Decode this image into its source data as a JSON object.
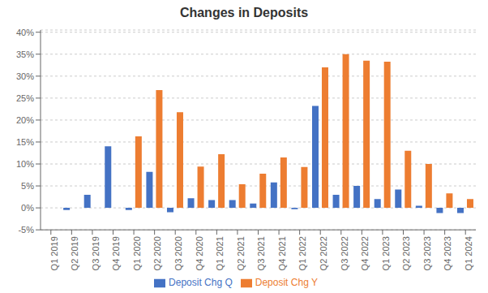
{
  "chart_data": {
    "type": "bar",
    "title": "Changes in Deposits",
    "categories": [
      "Q1 2019",
      "Q2 2019",
      "Q3 2019",
      "Q4 2019",
      "Q1 2020",
      "Q2 2020",
      "Q3 2020",
      "Q4 2020",
      "Q1 2021",
      "Q2 2021",
      "Q3 2021",
      "Q4 2021",
      "Q1 2022",
      "Q2 2022",
      "Q3 2022",
      "Q4 2022",
      "Q1 2023",
      "Q2 2023",
      "Q3 2023",
      "Q4 2023",
      "Q1 2024"
    ],
    "series": [
      {
        "name": "Deposit Chg Q",
        "color": "#4472c4",
        "values": [
          0.0,
          -0.005,
          0.03,
          0.14,
          -0.005,
          0.082,
          -0.01,
          0.022,
          0.018,
          0.018,
          0.01,
          0.058,
          -0.003,
          0.232,
          0.03,
          0.05,
          0.02,
          0.042,
          0.005,
          -0.012,
          -0.012
        ]
      },
      {
        "name": "Deposit Chg Y",
        "color": "#ed7d31",
        "values": [
          0.0,
          0.0,
          0.0,
          0.0,
          0.163,
          0.268,
          0.218,
          0.094,
          0.122,
          0.054,
          0.078,
          0.115,
          0.093,
          0.32,
          0.35,
          0.335,
          0.333,
          0.13,
          0.1,
          0.033,
          0.02
        ]
      }
    ],
    "ylim": [
      -0.05,
      0.405
    ],
    "yticks": [
      {
        "value": -0.05,
        "label": "-5%"
      },
      {
        "value": 0.0,
        "label": "0%"
      },
      {
        "value": 0.05,
        "label": "5%"
      },
      {
        "value": 0.1,
        "label": "10%"
      },
      {
        "value": 0.15,
        "label": "15%"
      },
      {
        "value": 0.2,
        "label": "20%"
      },
      {
        "value": 0.25,
        "label": "25%"
      },
      {
        "value": 0.3,
        "label": "30%"
      },
      {
        "value": 0.35,
        "label": "35%"
      },
      {
        "value": 0.4,
        "label": "40%"
      }
    ],
    "grid": true,
    "legend": "bottom"
  }
}
